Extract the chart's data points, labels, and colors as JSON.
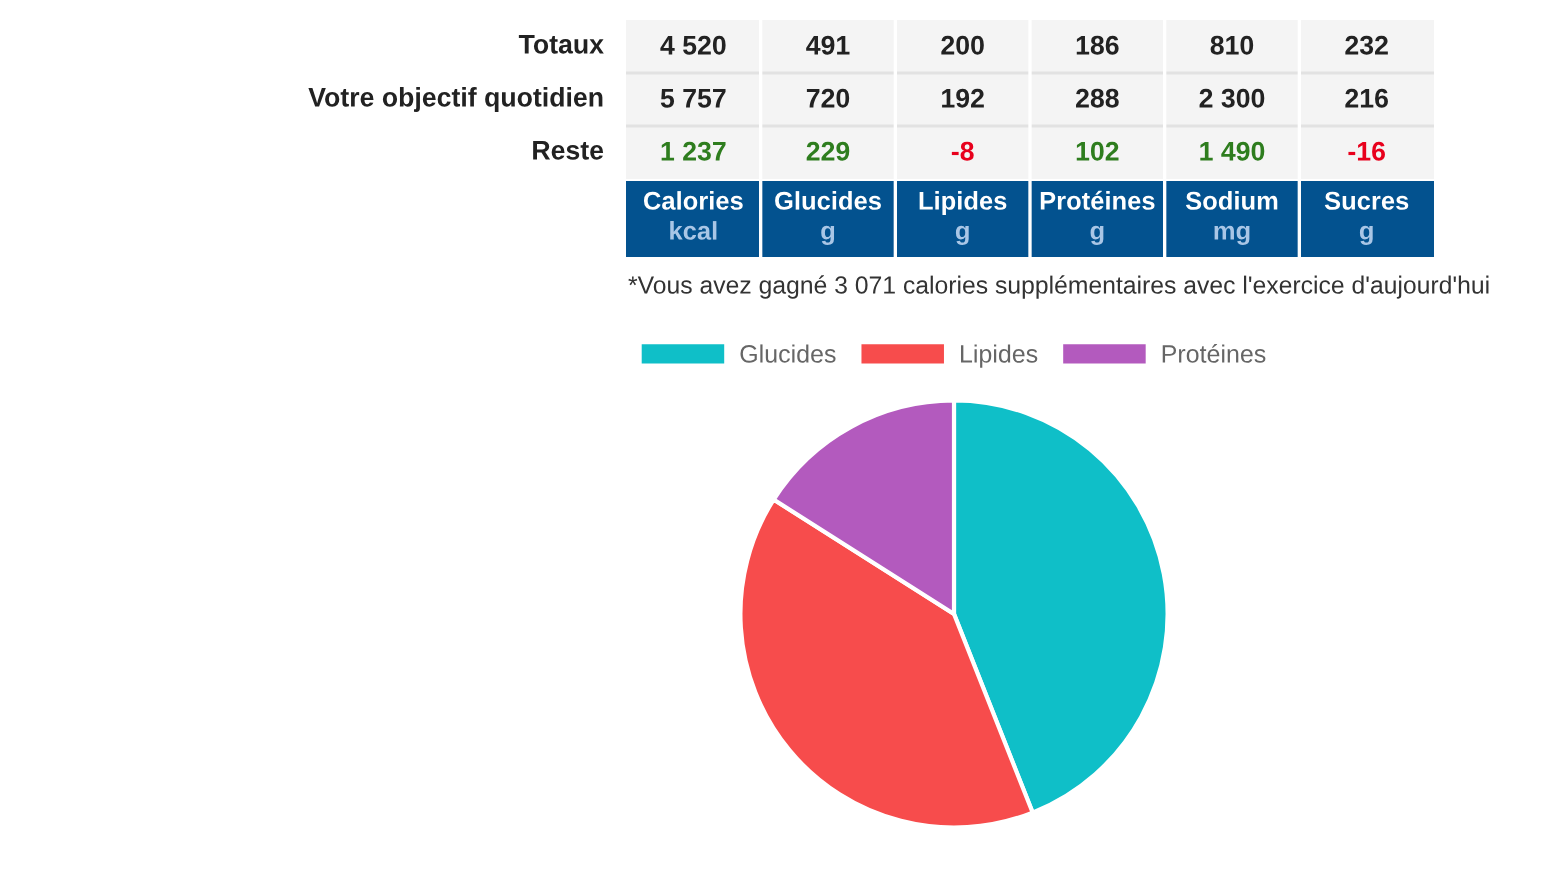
{
  "chart_data": [
    {
      "type": "other",
      "categories": [
        "Calories\nkcal",
        "Glucides\ng",
        "Lipides\ng",
        "Protéines\ng",
        "Sodium\nmg",
        "Sucres\ng"
      ],
      "series": [
        {
          "name": "Totaux",
          "values": [
            4520,
            491,
            200,
            186,
            810,
            232
          ]
        },
        {
          "name": "Votre objectif quotidien",
          "values": [
            5757,
            720,
            192,
            288,
            2300,
            216
          ]
        },
        {
          "name": "Reste",
          "colors": [
            "#2e7d1e",
            "#2e7d1e",
            "#e8001c",
            "#2e7d1e",
            "#2e7d1e",
            "#e8001c"
          ],
          "values": [
            1237,
            229,
            -8,
            102,
            1490,
            -16
          ]
        }
      ],
      "data_labels": true,
      "annotations": [
        "*Vous avez gagné 3 071 calories supplémentaires avec l'exercice d'aujourd'hui"
      ]
    },
    {
      "type": "pie",
      "categories": [
        "Glucides",
        "Lipides",
        "Protéines"
      ],
      "values": [
        44,
        40,
        16
      ],
      "colors": [
        "#0fbfc8",
        "#f74c4c",
        "#b35abe"
      ],
      "legend": "top"
    }
  ]
}
